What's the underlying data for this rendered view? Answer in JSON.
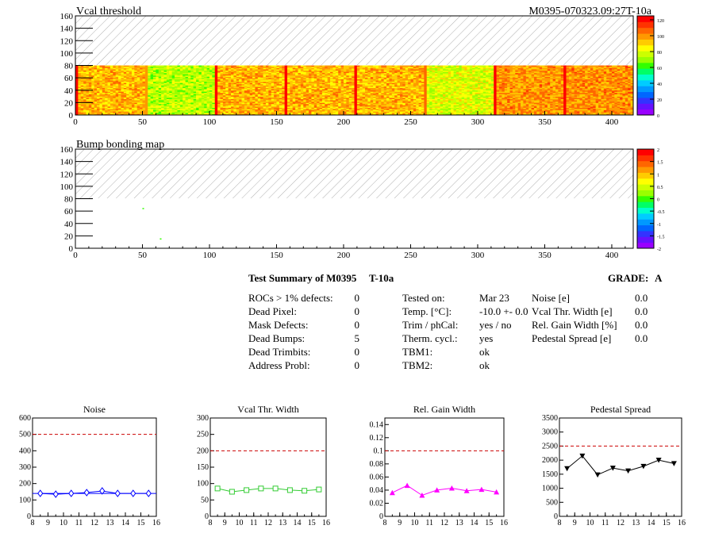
{
  "header": {
    "map1_title": "Vcal threshold",
    "module_id": "M0395-070323.09:27T-10a",
    "map2_title": "Bump bonding map"
  },
  "colors": {
    "palette": [
      "#9900ff",
      "#6611ff",
      "#3333ff",
      "#0066ff",
      "#0099ff",
      "#00ccff",
      "#00ffcc",
      "#00ff66",
      "#33ff00",
      "#99ff00",
      "#ccff00",
      "#ffff00",
      "#ffcc00",
      "#ff9900",
      "#ff6600",
      "#ff3300",
      "#ff0000"
    ],
    "noise": "#0000ff",
    "vcal": "#33cc33",
    "gain": "#ff00ff",
    "pedestal": "#000000",
    "limit": "#cc0000"
  },
  "heatmaps": [
    {
      "name": "vcal-threshold-map",
      "xticks": [
        "0",
        "50",
        "100",
        "150",
        "200",
        "250",
        "300",
        "350",
        "400"
      ],
      "yticks": [
        "0",
        "20",
        "40",
        "60",
        "80",
        "100",
        "120",
        "140",
        "160"
      ],
      "scale_ticks": [
        "120",
        "100",
        "80",
        "60",
        "40",
        "20",
        "0"
      ]
    },
    {
      "name": "bump-bonding-map",
      "xticks": [
        "0",
        "50",
        "100",
        "150",
        "200",
        "250",
        "300",
        "350",
        "400"
      ],
      "yticks": [
        "0",
        "20",
        "40",
        "60",
        "80",
        "100",
        "120",
        "140",
        "160"
      ],
      "scale_ticks": [
        "2",
        "1.5",
        "1",
        "0.5",
        "0",
        "-0.5",
        "-1",
        "-1.5",
        "-2"
      ]
    }
  ],
  "summary": {
    "title": "Test Summary of M0395",
    "temp_id": "T-10a",
    "grade_label": "GRADE:",
    "grade": "A",
    "left_labels": [
      "ROCs > 1% defects:",
      "Dead Pixel:",
      "Mask Defects:",
      "Dead Bumps:",
      "Dead Trimbits:",
      "Address Probl:"
    ],
    "left_values": [
      "0",
      "0",
      "0",
      "5",
      "0",
      "0"
    ],
    "mid_labels": [
      "Tested on:",
      "Temp. [°C]:",
      "Trim / phCal:",
      "Therm. cycl.:",
      "TBM1:",
      "TBM2:"
    ],
    "mid_values": [
      "Mar 23",
      "-10.0 +- 0.0",
      "yes / no",
      "yes",
      "ok",
      "ok"
    ],
    "right_labels": [
      "Noise [e]",
      "Vcal Thr. Width [e]",
      "Rel. Gain Width [%]",
      "Pedestal Spread [e]"
    ],
    "right_values": [
      "0.0",
      "0.0",
      "0.0",
      "0.0"
    ]
  },
  "chart_data": [
    {
      "type": "heatmap",
      "title": "Vcal threshold",
      "xlim": [
        0,
        416
      ],
      "ylim": [
        0,
        160
      ],
      "filled_rows": [
        0,
        80
      ],
      "chip_columns": [
        0,
        52,
        104,
        156,
        208,
        260,
        312,
        364,
        416
      ],
      "chip_mean_values": [
        95,
        75,
        95,
        95,
        95,
        80,
        100,
        100
      ],
      "zlim": [
        0,
        125
      ],
      "grid": false
    },
    {
      "type": "heatmap",
      "title": "Bump bonding map",
      "xlim": [
        0,
        416
      ],
      "ylim": [
        0,
        160
      ],
      "zlim": [
        -2,
        2
      ],
      "points": [
        {
          "x": 50,
          "y": 65,
          "z": 0
        },
        {
          "x": 63,
          "y": 16,
          "z": 0
        }
      ],
      "grid": false
    },
    {
      "type": "line",
      "title": "Noise",
      "x": [
        8.5,
        9.5,
        10.5,
        11.5,
        12.5,
        13.5,
        14.5,
        15.5
      ],
      "y": [
        140,
        135,
        140,
        145,
        155,
        140,
        140,
        140
      ],
      "limit": 500,
      "xlim": [
        8,
        16
      ],
      "ylim": [
        0,
        600
      ],
      "xticks": [
        "8",
        "9",
        "10",
        "11",
        "12",
        "13",
        "14",
        "15",
        "16"
      ],
      "yticks": [
        "0",
        "100",
        "200",
        "300",
        "400",
        "500",
        "600"
      ],
      "marker": "diamond"
    },
    {
      "type": "line",
      "title": "Vcal Thr. Width",
      "x": [
        8.5,
        9.5,
        10.5,
        11.5,
        12.5,
        13.5,
        14.5,
        15.5
      ],
      "y": [
        85,
        75,
        80,
        85,
        85,
        80,
        78,
        82
      ],
      "limit": 200,
      "xlim": [
        8,
        16
      ],
      "ylim": [
        0,
        300
      ],
      "xticks": [
        "8",
        "9",
        "10",
        "11",
        "12",
        "13",
        "14",
        "15",
        "16"
      ],
      "yticks": [
        "0",
        "50",
        "100",
        "150",
        "200",
        "250",
        "300"
      ],
      "marker": "square"
    },
    {
      "type": "line",
      "title": "Rel. Gain Width",
      "x": [
        8.5,
        9.5,
        10.5,
        11.5,
        12.5,
        13.5,
        14.5,
        15.5
      ],
      "y": [
        0.036,
        0.047,
        0.032,
        0.04,
        0.043,
        0.039,
        0.041,
        0.037
      ],
      "limit": 0.1,
      "xlim": [
        8,
        16
      ],
      "ylim": [
        0,
        0.15
      ],
      "xticks": [
        "8",
        "9",
        "10",
        "11",
        "12",
        "13",
        "14",
        "15",
        "16"
      ],
      "yticks": [
        "0",
        "0.02",
        "0.04",
        "0.06",
        "0.08",
        "0.1",
        "0.12",
        "0.14"
      ],
      "marker": "triangle-up"
    },
    {
      "type": "line",
      "title": "Pedestal Spread",
      "x": [
        8.5,
        9.5,
        10.5,
        11.5,
        12.5,
        13.5,
        14.5,
        15.5
      ],
      "y": [
        1700,
        2150,
        1480,
        1720,
        1620,
        1780,
        2000,
        1880
      ],
      "limit": 2500,
      "xlim": [
        8,
        16
      ],
      "ylim": [
        0,
        3500
      ],
      "xticks": [
        "8",
        "9",
        "10",
        "11",
        "12",
        "13",
        "14",
        "15",
        "16"
      ],
      "yticks": [
        "0",
        "500",
        "1000",
        "1500",
        "2000",
        "2500",
        "3000",
        "3500"
      ],
      "marker": "triangle-down"
    }
  ]
}
